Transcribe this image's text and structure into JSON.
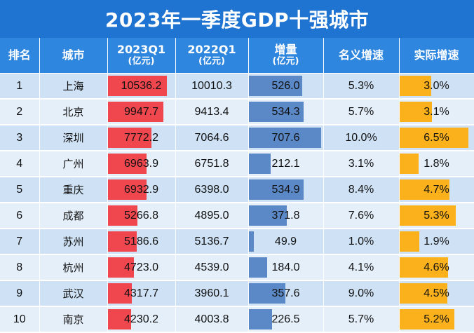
{
  "title": "2023年一季度GDP十强城市",
  "colors": {
    "header_bg": "#2e86de",
    "title_bg": "#1f74d2",
    "bar_2023": "#f0474f",
    "bar_increase": "#5b88c6",
    "bar_real_growth": "#fbb11c"
  },
  "headers": {
    "rank": "排名",
    "city": "城市",
    "q1_2023": "2023Q1",
    "q1_2023_unit": "(亿元)",
    "q1_2022": "2022Q1",
    "q1_2022_unit": "(亿元)",
    "increase": "增量",
    "increase_unit": "(亿元)",
    "nominal": "名义增速",
    "real": "实际增速"
  },
  "chart_data": {
    "type": "table",
    "title": "2023年一季度GDP十强城市",
    "columns": [
      "排名",
      "城市",
      "2023Q1(亿元)",
      "2022Q1(亿元)",
      "增量(亿元)",
      "名义增速",
      "实际增速"
    ],
    "data_bar_ranges": {
      "q1_2023": [
        0,
        12000
      ],
      "increase": [
        0,
        725
      ],
      "real_growth": [
        0,
        7.0
      ]
    },
    "rows": [
      {
        "rank": "1",
        "city": "上海",
        "q1_2023": "10536.2",
        "q1_2022": "10010.3",
        "increase": "526.0",
        "nominal": "5.3%",
        "real": "3.0%",
        "q1_2023_v": 10536.2,
        "increase_v": 526.0,
        "real_v": 3.0
      },
      {
        "rank": "2",
        "city": "北京",
        "q1_2023": "9947.7",
        "q1_2022": "9413.4",
        "increase": "534.3",
        "nominal": "5.7%",
        "real": "3.1%",
        "q1_2023_v": 9947.7,
        "increase_v": 534.3,
        "real_v": 3.1
      },
      {
        "rank": "3",
        "city": "深圳",
        "q1_2023": "7772.2",
        "q1_2022": "7064.6",
        "increase": "707.6",
        "nominal": "10.0%",
        "real": "6.5%",
        "q1_2023_v": 7772.2,
        "increase_v": 707.6,
        "real_v": 6.5
      },
      {
        "rank": "4",
        "city": "广州",
        "q1_2023": "6963.9",
        "q1_2022": "6751.8",
        "increase": "212.1",
        "nominal": "3.1%",
        "real": "1.8%",
        "q1_2023_v": 6963.9,
        "increase_v": 212.1,
        "real_v": 1.8
      },
      {
        "rank": "5",
        "city": "重庆",
        "q1_2023": "6932.9",
        "q1_2022": "6398.0",
        "increase": "534.9",
        "nominal": "8.4%",
        "real": "4.7%",
        "q1_2023_v": 6932.9,
        "increase_v": 534.9,
        "real_v": 4.7
      },
      {
        "rank": "6",
        "city": "成都",
        "q1_2023": "5266.8",
        "q1_2022": "4895.0",
        "increase": "371.8",
        "nominal": "7.6%",
        "real": "5.3%",
        "q1_2023_v": 5266.8,
        "increase_v": 371.8,
        "real_v": 5.3
      },
      {
        "rank": "7",
        "city": "苏州",
        "q1_2023": "5186.6",
        "q1_2022": "5136.7",
        "increase": "49.9",
        "nominal": "1.0%",
        "real": "1.9%",
        "q1_2023_v": 5186.6,
        "increase_v": 49.9,
        "real_v": 1.9
      },
      {
        "rank": "8",
        "city": "杭州",
        "q1_2023": "4723.0",
        "q1_2022": "4539.0",
        "increase": "184.0",
        "nominal": "4.1%",
        "real": "4.6%",
        "q1_2023_v": 4723.0,
        "increase_v": 184.0,
        "real_v": 4.6
      },
      {
        "rank": "9",
        "city": "武汉",
        "q1_2023": "4317.7",
        "q1_2022": "3960.1",
        "increase": "357.6",
        "nominal": "9.0%",
        "real": "4.5%",
        "q1_2023_v": 4317.7,
        "increase_v": 357.6,
        "real_v": 4.5
      },
      {
        "rank": "10",
        "city": "南京",
        "q1_2023": "4230.2",
        "q1_2022": "4003.8",
        "increase": "226.5",
        "nominal": "5.7%",
        "real": "5.2%",
        "q1_2023_v": 4230.2,
        "increase_v": 226.5,
        "real_v": 5.2
      }
    ]
  }
}
